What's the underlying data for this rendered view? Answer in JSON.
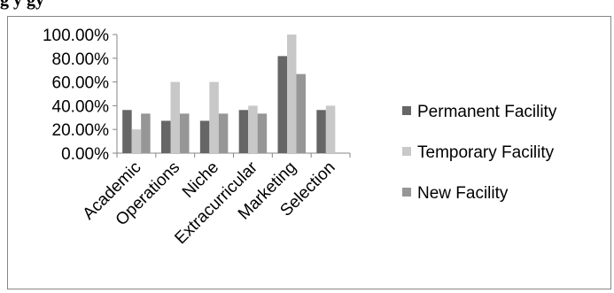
{
  "title_fragment": "g                                                    y             gy",
  "chart_data": {
    "type": "bar",
    "categories": [
      "Academic",
      "Operations",
      "Niche",
      "Extracurricular",
      "Marketing",
      "Selection"
    ],
    "series": [
      {
        "name": "Permanent Facility",
        "values": [
          36.36,
          27.27,
          27.27,
          36.36,
          81.82,
          36.36
        ],
        "color": "#666666"
      },
      {
        "name": "Temporary Facility",
        "values": [
          20.0,
          60.0,
          60.0,
          40.0,
          100.0,
          40.0
        ],
        "color": "#c8c8c8"
      },
      {
        "name": "New Facility",
        "values": [
          33.33,
          33.33,
          33.33,
          33.33,
          66.67,
          0
        ],
        "color": "#969696"
      }
    ],
    "yticks": [
      "100.00%",
      "80.00%",
      "60.00%",
      "40.00%",
      "20.00%",
      "0.00%"
    ],
    "ylim": [
      0,
      100
    ],
    "legend_position": "right",
    "grid": false,
    "title": "",
    "xlabel": "",
    "ylabel": ""
  }
}
